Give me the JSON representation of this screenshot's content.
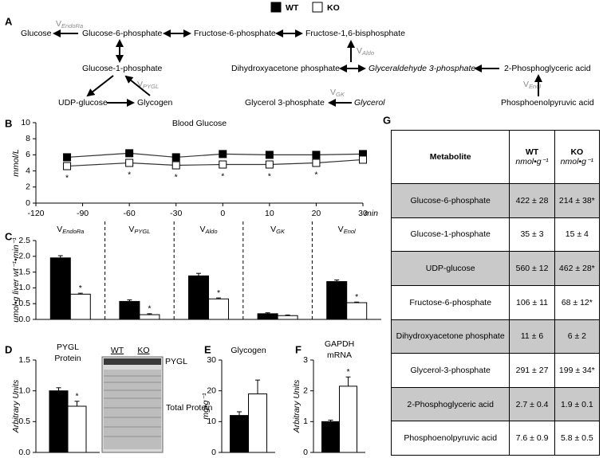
{
  "panel_labels": [
    "A",
    "B",
    "C",
    "D",
    "E",
    "F",
    "G"
  ],
  "diagram": {
    "nodes": [
      "Glucose",
      "Glucose-6-phosphate",
      "Fructose-6-phosphate",
      "Fructose-1,6-bisphosphate",
      "Glucose-1-phosphate",
      "UDP-glucose",
      "Glycogen",
      "Dihydroxyacetone phosphate",
      "Glyceraldehyde 3-phosphate",
      "2-Phosphoglyceric acid",
      "Glycerol 3-phosphate",
      "Glycerol",
      "Phosphoenolpyruvic acid"
    ],
    "enzymes": [
      {
        "symbol": "V",
        "subscript": "EndoRa"
      },
      {
        "symbol": "V",
        "subscript": "PYGL"
      },
      {
        "symbol": "V",
        "subscript": "Aldo"
      },
      {
        "symbol": "V",
        "subscript": "GK"
      },
      {
        "symbol": "V",
        "subscript": "Enol"
      }
    ]
  },
  "chart_data": [
    {
      "type": "line",
      "title": "Blood Glucose",
      "ylabel": "mmol/L",
      "xlabel": "min",
      "x": [
        -100,
        -60,
        -30,
        0,
        10,
        20,
        30
      ],
      "xlim": [
        -120,
        30
      ],
      "xticks": [
        -120,
        -90,
        -60,
        -30,
        0,
        10,
        20,
        30
      ],
      "ylim": [
        0,
        10
      ],
      "yticks": [
        0,
        2,
        4,
        6,
        8,
        10
      ],
      "grid": false,
      "series": [
        {
          "name": "WT",
          "color": "#000000",
          "values": [
            5.7,
            6.2,
            5.7,
            6.1,
            6.0,
            6.0,
            6.1
          ]
        },
        {
          "name": "KO",
          "color": "#ffffff",
          "values": [
            4.6,
            5.0,
            4.7,
            4.8,
            4.8,
            5.0,
            5.4
          ],
          "annotations": [
            "*",
            "*",
            "*",
            "*",
            "*",
            "*",
            null
          ]
        }
      ]
    },
    {
      "type": "bar",
      "ylabel": "umol•g liver wt⁻¹•min⁻¹",
      "categories": [
        {
          "symbol": "V",
          "subscript": "EndoRa"
        },
        {
          "symbol": "V",
          "subscript": "PYGL"
        },
        {
          "symbol": "V",
          "subscript": "Aldo"
        },
        {
          "symbol": "V",
          "subscript": "GK"
        },
        {
          "symbol": "V",
          "subscript": "Enol"
        }
      ],
      "ylim": [
        0,
        2.5
      ],
      "yticks": [
        {
          "value": 0,
          "label": "0.0"
        },
        0.5,
        {
          "value": 1,
          "label": "1.0"
        },
        1.5,
        {
          "value": 2,
          "label": "2.0"
        },
        2.5
      ],
      "grid": false,
      "series": [
        {
          "color": "#000000",
          "values": [
            1.95,
            0.57,
            1.38,
            0.18,
            1.2
          ],
          "errors": [
            0.07,
            0.05,
            0.08,
            0.03,
            0.05
          ]
        },
        {
          "color": "#ffffff",
          "values": [
            0.8,
            0.15,
            0.65,
            0.12,
            0.53
          ],
          "errors": [
            0.03,
            0.03,
            0.03,
            0.02,
            0.02
          ],
          "annotations": [
            "*",
            "*",
            "*",
            null,
            "*"
          ]
        }
      ]
    },
    {
      "type": "bar",
      "title": [
        "PYGL",
        "Protein"
      ],
      "ylabel": "Arbitrary Units",
      "ylim": [
        0,
        1.5
      ],
      "yticks": [
        {
          "value": 0,
          "label": "0.0"
        },
        0.5,
        {
          "value": 1,
          "label": "1.0"
        },
        1.5
      ],
      "grid": false,
      "blot": {
        "lanes": [
          "WT",
          "KO"
        ],
        "labels": [
          "PYGL",
          "Total Protein"
        ]
      },
      "series": [
        {
          "color": "#000000",
          "values": [
            1.0
          ],
          "errors": [
            0.05
          ]
        },
        {
          "color": "#ffffff",
          "values": [
            0.75
          ],
          "errors": [
            0.08
          ],
          "annotations": [
            "*"
          ]
        }
      ]
    },
    {
      "type": "bar",
      "title": [
        "Glycogen"
      ],
      "ylabel": "mg•g⁻¹",
      "ylim": [
        0,
        30
      ],
      "yticks": [
        0,
        10,
        20,
        30
      ],
      "grid": false,
      "series": [
        {
          "color": "#000000",
          "values": [
            12
          ],
          "errors": [
            1.2
          ]
        },
        {
          "color": "#ffffff",
          "values": [
            19
          ],
          "errors": [
            4.5
          ]
        }
      ]
    },
    {
      "type": "bar",
      "title": [
        "GAPDH",
        "mRNA"
      ],
      "ylabel": "Arbitrary Units",
      "ylim": [
        0,
        3
      ],
      "yticks": [
        0,
        1,
        2,
        3
      ],
      "grid": false,
      "series": [
        {
          "color": "#000000",
          "values": [
            1.0
          ],
          "errors": [
            0.05
          ]
        },
        {
          "color": "#ffffff",
          "values": [
            2.15
          ],
          "errors": [
            0.3
          ],
          "annotations": [
            "*"
          ]
        }
      ]
    }
  ],
  "table": {
    "columns": [
      {
        "title": "Metabolite"
      },
      {
        "title": "WT",
        "unit": "nmol•g⁻¹"
      },
      {
        "title": "KO",
        "unit": "nmol•g⁻¹"
      }
    ],
    "rows": [
      [
        "Glucose-6-phosphate",
        "422 ± 28",
        "214 ± 38*"
      ],
      [
        "Glucose-1-phosphate",
        "35 ± 3",
        "15 ± 4"
      ],
      [
        "UDP-glucose",
        "560 ± 12",
        "462 ± 28*"
      ],
      [
        "Fructose-6-phosphate",
        "106 ± 11",
        "68 ± 12*"
      ],
      [
        "Dihydroxyacetone phosphate",
        "11 ± 6",
        "6 ± 2"
      ],
      [
        "Glycerol-3-phosphate",
        "291 ± 27",
        "199 ± 34*"
      ],
      [
        "2-Phosphoglyceric acid",
        "2.7 ± 0.4",
        "1.9 ± 0.1"
      ],
      [
        "Phosphoenolpyruvic acid",
        "7.6 ± 0.9",
        "5.8 ± 0.5"
      ]
    ]
  }
}
